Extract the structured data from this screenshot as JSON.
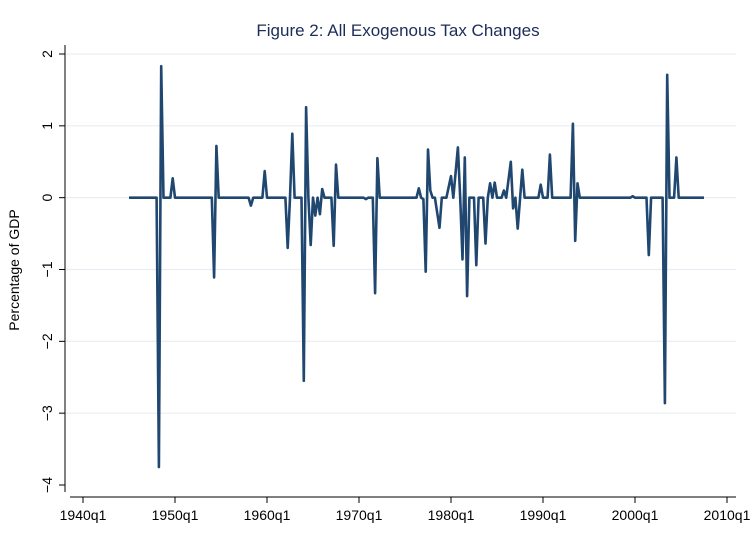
{
  "chart_data": {
    "type": "line",
    "title": "Figure 2: All Exogenous Tax Changes",
    "xlabel": "",
    "ylabel": "Percentage of GDP",
    "xlim": [
      "1940q1",
      "2010q1"
    ],
    "ylim": [
      -4,
      2
    ],
    "x_ticks": [
      "1940q1",
      "1950q1",
      "1960q1",
      "1970q1",
      "1980q1",
      "1990q1",
      "2000q1",
      "2010q1"
    ],
    "y_ticks": [
      "-4",
      "-3",
      "-2",
      "-1",
      "0",
      "1",
      "2"
    ],
    "grid": true,
    "line_color": "#1f4770",
    "series": [
      {
        "points": [
          [
            "1945q1",
            0
          ],
          [
            "1948q1",
            0
          ],
          [
            "1948q2",
            -3.75
          ],
          [
            "1948q3",
            1.83
          ],
          [
            "1948q4",
            0
          ],
          [
            "1949q3",
            0
          ],
          [
            "1949q4",
            0.27
          ],
          [
            "1950q1",
            0
          ],
          [
            "1954q1",
            0
          ],
          [
            "1954q2",
            -1.11
          ],
          [
            "1954q3",
            0.72
          ],
          [
            "1954q4",
            0
          ],
          [
            "1958q1",
            0
          ],
          [
            "1958q2",
            -0.11
          ],
          [
            "1958q3",
            0
          ],
          [
            "1959q3",
            0
          ],
          [
            "1959q4",
            0.37
          ],
          [
            "1960q1",
            0
          ],
          [
            "1962q1",
            0
          ],
          [
            "1962q2",
            -0.7
          ],
          [
            "1962q3",
            0
          ],
          [
            "1962q4",
            0.89
          ],
          [
            "1963q1",
            0
          ],
          [
            "1963q4",
            0
          ],
          [
            "1964q1",
            -2.55
          ],
          [
            "1964q2",
            1.26
          ],
          [
            "1964q3",
            0
          ],
          [
            "1964q4",
            -0.66
          ],
          [
            "1965q1",
            0
          ],
          [
            "1965q2",
            -0.25
          ],
          [
            "1965q3",
            0
          ],
          [
            "1965q4",
            -0.23
          ],
          [
            "1966q1",
            0.12
          ],
          [
            "1966q2",
            0
          ],
          [
            "1967q1",
            0
          ],
          [
            "1967q2",
            -0.67
          ],
          [
            "1967q3",
            0.46
          ],
          [
            "1967q4",
            0
          ],
          [
            "1970q3",
            0
          ],
          [
            "1970q4",
            -0.02
          ],
          [
            "1971q1",
            0
          ],
          [
            "1971q3",
            0
          ],
          [
            "1971q4",
            -1.33
          ],
          [
            "1972q1",
            0.55
          ],
          [
            "1972q2",
            0
          ],
          [
            "1976q2",
            0
          ],
          [
            "1976q3",
            0.13
          ],
          [
            "1976q4",
            0
          ],
          [
            "1977q1",
            -0.02
          ],
          [
            "1977q2",
            -1.03
          ],
          [
            "1977q3",
            0.67
          ],
          [
            "1977q4",
            0.1
          ],
          [
            "1978q1",
            0
          ],
          [
            "1978q2",
            0
          ],
          [
            "1978q4",
            -0.42
          ],
          [
            "1979q1",
            0
          ],
          [
            "1979q3",
            0
          ],
          [
            "1980q1",
            0.3
          ],
          [
            "1980q2",
            0
          ],
          [
            "1980q4",
            0.7
          ],
          [
            "1981q1",
            0
          ],
          [
            "1981q2",
            -0.86
          ],
          [
            "1981q3",
            0.56
          ],
          [
            "1981q4",
            -1.37
          ],
          [
            "1982q1",
            0
          ],
          [
            "1982q3",
            0
          ],
          [
            "1982q4",
            -0.94
          ],
          [
            "1983q1",
            0
          ],
          [
            "1983q3",
            0
          ],
          [
            "1983q4",
            -0.64
          ],
          [
            "1984q1",
            0
          ],
          [
            "1984q2",
            0.2
          ],
          [
            "1984q3",
            0
          ],
          [
            "1984q4",
            0.21
          ],
          [
            "1985q1",
            0
          ],
          [
            "1985q3",
            0
          ],
          [
            "1985q4",
            0.1
          ],
          [
            "1986q1",
            0
          ],
          [
            "1986q3",
            0.5
          ],
          [
            "1986q4",
            -0.15
          ],
          [
            "1987q1",
            0
          ],
          [
            "1987q2",
            -0.43
          ],
          [
            "1987q4",
            0.39
          ],
          [
            "1988q1",
            0
          ],
          [
            "1989q3",
            0
          ],
          [
            "1989q4",
            0.18
          ],
          [
            "1990q1",
            0
          ],
          [
            "1990q3",
            0
          ],
          [
            "1990q4",
            0.6
          ],
          [
            "1991q1",
            0
          ],
          [
            "1993q1",
            0
          ],
          [
            "1993q2",
            1.03
          ],
          [
            "1993q3",
            -0.6
          ],
          [
            "1993q4",
            0.2
          ],
          [
            "1994q1",
            0
          ],
          [
            "1999q3",
            0
          ],
          [
            "1999q4",
            0.02
          ],
          [
            "2000q1",
            0
          ],
          [
            "2001q2",
            0
          ],
          [
            "2001q3",
            -0.8
          ],
          [
            "2001q4",
            0
          ],
          [
            "2003q1",
            0
          ],
          [
            "2003q2",
            -2.86
          ],
          [
            "2003q3",
            1.71
          ],
          [
            "2003q4",
            0
          ],
          [
            "2004q2",
            0
          ],
          [
            "2004q3",
            0.56
          ],
          [
            "2004q4",
            0
          ],
          [
            "2007q3",
            0
          ]
        ]
      }
    ]
  }
}
